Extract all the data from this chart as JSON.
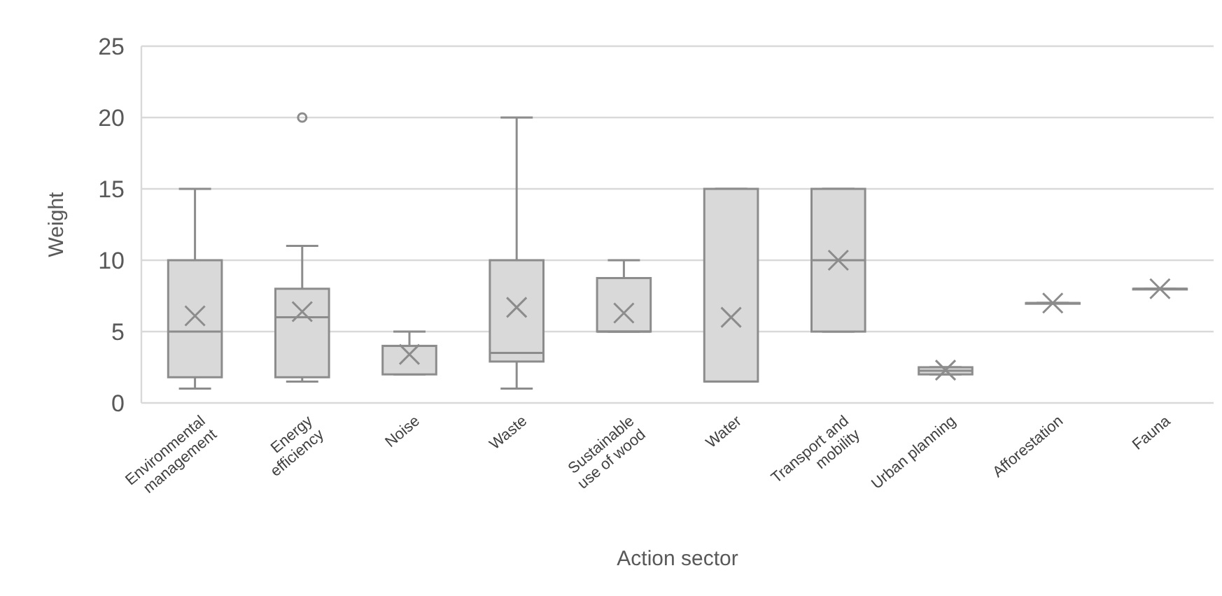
{
  "chart_data": {
    "type": "box",
    "xlabel": "Action sector",
    "ylabel": "Weight",
    "categories": [
      "Environmental management",
      "Energy efficiency",
      "Noise",
      "Waste",
      "Sustainable use of wood",
      "Water",
      "Transport and mobility",
      "Urban planning",
      "Afforestation",
      "Fauna"
    ],
    "boxes": [
      {
        "low": 1,
        "q1": 1.8,
        "median": 5,
        "q3": 10,
        "high": 15,
        "mean": 6.1
      },
      {
        "low": 1.5,
        "q1": 1.8,
        "median": 6,
        "q3": 8,
        "high": 11,
        "mean": 6.4,
        "outliers": [
          20
        ]
      },
      {
        "low": 2,
        "q1": 2,
        "median": 4,
        "q3": 4,
        "high": 5,
        "mean": 3.4
      },
      {
        "low": 1,
        "q1": 2.9,
        "median": 3.5,
        "q3": 10,
        "high": 20,
        "mean": 6.7
      },
      {
        "low": 5,
        "q1": 5,
        "median": 5,
        "q3": 8.75,
        "high": 10,
        "mean": 6.3
      },
      {
        "low": 1.5,
        "q1": 1.5,
        "median": 1.5,
        "q3": 15,
        "high": 15,
        "mean": 6
      },
      {
        "low": 5,
        "q1": 5,
        "median": 10,
        "q3": 15,
        "high": 15,
        "mean": 10
      },
      {
        "low": 2,
        "q1": 2,
        "median": 2.25,
        "q3": 2.5,
        "high": 2.5,
        "mean": 2.3
      },
      {
        "low": 7,
        "q1": 7,
        "median": 7,
        "q3": 7,
        "high": 7,
        "mean": 7
      },
      {
        "low": 8,
        "q1": 8,
        "median": 8,
        "q3": 8,
        "high": 8,
        "mean": 8
      }
    ],
    "color": "#d9d9d9",
    "ylim": [
      0,
      25
    ],
    "yticks": [
      0,
      5,
      10,
      15,
      20,
      25
    ],
    "grid": "y"
  }
}
